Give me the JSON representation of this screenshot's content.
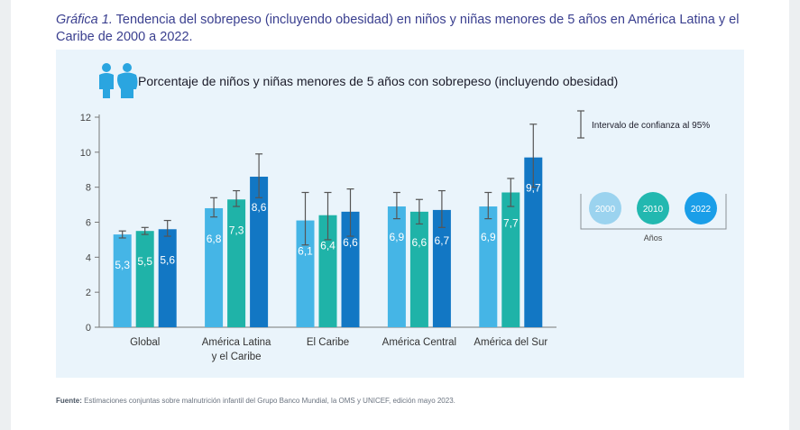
{
  "figure_label": "Gráfica 1.",
  "figure_title": "Tendencia del sobrepeso (incluyendo obesidad) en niños y niñas menores de 5 años en América Latina y el Caribe de 2000 a 2022.",
  "source_label": "Fuente:",
  "source_text": "Estimaciones conjuntas sobre malnutrición infantil del Grupo Banco Mundial, la OMS y UNICEF, edición mayo 2023.",
  "icon": "children-icon",
  "colors": {
    "2000": "#45b5e6",
    "2010": "#1fb3a8",
    "2022": "#1277c4"
  },
  "chart_data": {
    "type": "bar",
    "title": "Porcentaje de niños y niñas menores de 5 años con sobrepeso (incluyendo obesidad)",
    "categories": [
      "Global",
      "América Latina\ny el Caribe",
      "El Caribe",
      "América Central",
      "América del Sur"
    ],
    "yticks": [
      0,
      2,
      4,
      6,
      8,
      10,
      12
    ],
    "ylim": [
      0,
      12
    ],
    "series": [
      {
        "name": "2000",
        "values": [
          5.3,
          6.8,
          6.1,
          6.9,
          6.9
        ],
        "value_labels": [
          "5,3",
          "6,8",
          "6,1",
          "6,9",
          "6,9"
        ],
        "ci_low": [
          5.1,
          6.3,
          4.7,
          6.2,
          6.2
        ],
        "ci_high": [
          5.5,
          7.4,
          7.7,
          7.7,
          7.7
        ]
      },
      {
        "name": "2010",
        "values": [
          5.5,
          7.3,
          6.4,
          6.6,
          7.7
        ],
        "value_labels": [
          "5,5",
          "7,3",
          "6,4",
          "6,6",
          "7,7"
        ],
        "ci_low": [
          5.3,
          6.9,
          5.0,
          5.9,
          6.9
        ],
        "ci_high": [
          5.7,
          7.8,
          7.7,
          7.3,
          8.5
        ]
      },
      {
        "name": "2022",
        "values": [
          5.6,
          8.6,
          6.6,
          6.7,
          9.7
        ],
        "value_labels": [
          "5,6",
          "8,6",
          "6,6",
          "6,7",
          "9,7"
        ],
        "ci_low": [
          5.2,
          7.4,
          5.2,
          5.7,
          8.0
        ],
        "ci_high": [
          6.1,
          9.9,
          7.9,
          7.8,
          11.6
        ]
      }
    ],
    "legend": {
      "ci_label": "Intervalo de confianza al 95%",
      "title": "Años",
      "items": [
        "2000",
        "2010",
        "2022"
      ]
    },
    "grid": false
  }
}
